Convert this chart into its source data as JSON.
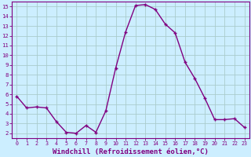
{
  "x": [
    0,
    1,
    2,
    3,
    4,
    5,
    6,
    7,
    8,
    9,
    10,
    11,
    12,
    13,
    14,
    15,
    16,
    17,
    18,
    19,
    20,
    21,
    22,
    23
  ],
  "y": [
    5.8,
    4.6,
    4.7,
    4.6,
    3.2,
    2.1,
    2.0,
    2.8,
    2.1,
    4.3,
    8.7,
    12.4,
    15.1,
    15.2,
    14.7,
    13.2,
    12.3,
    9.3,
    7.6,
    5.6,
    3.4,
    3.4,
    3.5,
    2.6
  ],
  "line_color": "#800080",
  "marker": "+",
  "marker_size": 3.5,
  "linewidth": 1.0,
  "xlabel": "Windchill (Refroidissement éolien,°C)",
  "xlabel_fontsize": 6.5,
  "background_color": "#cceeff",
  "grid_color": "#aacccc",
  "tick_color": "#800080",
  "label_color": "#800080",
  "xlim": [
    -0.5,
    23.5
  ],
  "ylim": [
    1.5,
    15.5
  ],
  "yticks": [
    2,
    3,
    4,
    5,
    6,
    7,
    8,
    9,
    10,
    11,
    12,
    13,
    14,
    15
  ],
  "xticks": [
    0,
    1,
    2,
    3,
    4,
    5,
    6,
    7,
    8,
    9,
    10,
    11,
    12,
    13,
    14,
    15,
    16,
    17,
    18,
    19,
    20,
    21,
    22,
    23
  ]
}
